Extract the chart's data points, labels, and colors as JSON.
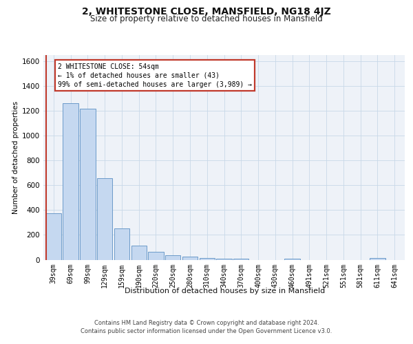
{
  "title": "2, WHITESTONE CLOSE, MANSFIELD, NG18 4JZ",
  "subtitle": "Size of property relative to detached houses in Mansfield",
  "xlabel": "Distribution of detached houses by size in Mansfield",
  "ylabel": "Number of detached properties",
  "categories": [
    "39sqm",
    "69sqm",
    "99sqm",
    "129sqm",
    "159sqm",
    "190sqm",
    "220sqm",
    "250sqm",
    "280sqm",
    "310sqm",
    "340sqm",
    "370sqm",
    "400sqm",
    "430sqm",
    "460sqm",
    "491sqm",
    "521sqm",
    "551sqm",
    "581sqm",
    "611sqm",
    "641sqm"
  ],
  "values": [
    375,
    1260,
    1215,
    660,
    255,
    115,
    65,
    35,
    25,
    15,
    10,
    10,
    0,
    0,
    10,
    0,
    0,
    0,
    0,
    12,
    0
  ],
  "bar_color": "#c5d8f0",
  "bar_edge_color": "#5a8fc3",
  "red_line_color": "#c0392b",
  "ylim": [
    0,
    1650
  ],
  "yticks": [
    0,
    200,
    400,
    600,
    800,
    1000,
    1200,
    1400,
    1600
  ],
  "annotation_text": "2 WHITESTONE CLOSE: 54sqm\n← 1% of detached houses are smaller (43)\n99% of semi-detached houses are larger (3,989) →",
  "annotation_box_facecolor": "#ffffff",
  "annotation_box_edgecolor": "#c0392b",
  "footer_line1": "Contains HM Land Registry data © Crown copyright and database right 2024.",
  "footer_line2": "Contains public sector information licensed under the Open Government Licence v3.0.",
  "grid_color": "#c8d8e8",
  "plot_bg_color": "#eef2f8",
  "fig_bg_color": "#ffffff",
  "title_fontsize": 10,
  "subtitle_fontsize": 8.5,
  "ylabel_fontsize": 7.5,
  "tick_fontsize": 7,
  "annotation_fontsize": 7,
  "footer_fontsize": 6,
  "xlabel_fontsize": 8
}
